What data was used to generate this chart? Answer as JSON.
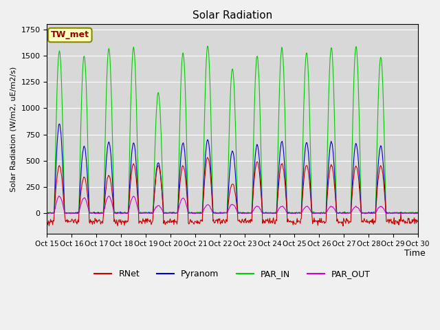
{
  "title": "Solar Radiation",
  "ylabel": "Solar Radiation (W/m2, uE/m2/s)",
  "xlabel": "Time",
  "annotation": "TW_met",
  "ylim": [
    -200,
    1800
  ],
  "xlim_days": 15,
  "xtick_labels": [
    "Oct 15",
    "Oct 16",
    "Oct 17",
    "Oct 18",
    "Oct 19",
    "Oct 20",
    "Oct 21",
    "Oct 22",
    "Oct 23",
    "Oct 24",
    "Oct 25",
    "Oct 26",
    "Oct 27",
    "Oct 28",
    "Oct 29",
    "Oct 30"
  ],
  "colors": {
    "RNet": "#cc0000",
    "Pyranom": "#0000cc",
    "PAR_IN": "#00cc00",
    "PAR_OUT": "#cc00cc"
  },
  "fig_facecolor": "#f0f0f0",
  "ax_facecolor": "#d8d8d8",
  "legend_labels": [
    "RNet",
    "Pyranom",
    "PAR_IN",
    "PAR_OUT"
  ],
  "par_in_peaks": [
    1550,
    1500,
    1570,
    1580,
    1150,
    1530,
    1600,
    1380,
    1500,
    1580,
    1530,
    1580,
    1590,
    1490,
    0
  ],
  "pyranom_peaks": [
    850,
    640,
    680,
    670,
    480,
    670,
    700,
    590,
    650,
    680,
    670,
    680,
    660,
    640,
    0
  ],
  "rnet_peaks": [
    450,
    340,
    360,
    470,
    450,
    450,
    530,
    280,
    490,
    470,
    460,
    460,
    450,
    450,
    0
  ],
  "par_out_peaks": [
    200,
    180,
    200,
    200,
    90,
    180,
    100,
    105,
    80,
    80,
    80,
    80,
    75,
    80,
    0
  ],
  "n_days": 15,
  "pts_per_day": 48
}
